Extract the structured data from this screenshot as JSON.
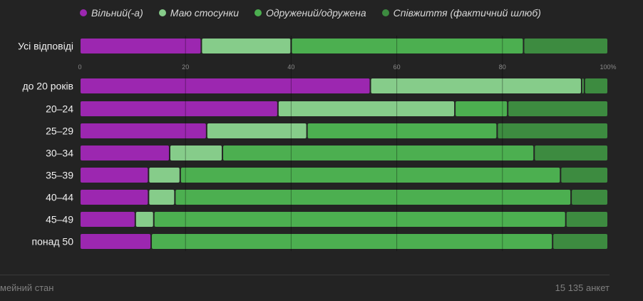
{
  "chart_data": {
    "type": "bar",
    "orientation": "horizontal",
    "stacked": true,
    "series": [
      {
        "name": "Вільний(-а)",
        "color": "#9c27b0"
      },
      {
        "name": "Маю стосунки",
        "color": "#86cc8a"
      },
      {
        "name": "Одружений/одружена",
        "color": "#4caf50"
      },
      {
        "name": "Співжиття (фактичний шлюб)",
        "color": "#3d8b40"
      }
    ],
    "rows": [
      {
        "label": "Усі відповіді",
        "values": [
          23,
          17,
          44,
          16
        ]
      },
      {
        "label": "до 20 років",
        "values": [
          55,
          40,
          0.5,
          4.5
        ]
      },
      {
        "label": "20–24",
        "values": [
          37.5,
          33.5,
          10,
          19
        ]
      },
      {
        "label": "25–29",
        "values": [
          24,
          19,
          36,
          21
        ]
      },
      {
        "label": "30–34",
        "values": [
          17,
          10,
          59,
          14
        ]
      },
      {
        "label": "35–39",
        "values": [
          13,
          6,
          72,
          9
        ]
      },
      {
        "label": "40–44",
        "values": [
          13,
          5,
          75,
          7
        ]
      },
      {
        "label": "45–49",
        "values": [
          10.5,
          3.5,
          78,
          8
        ]
      },
      {
        "label": "понад 50",
        "values": [
          13.5,
          0,
          76,
          10.5
        ]
      }
    ],
    "x_ticks": [
      "0",
      "20",
      "40",
      "60",
      "80",
      "100%"
    ],
    "xlim": [
      0,
      100
    ],
    "grid": true,
    "legend_position": "top"
  },
  "footer": {
    "left": "мейний стан",
    "right": "15 135 анкет"
  }
}
